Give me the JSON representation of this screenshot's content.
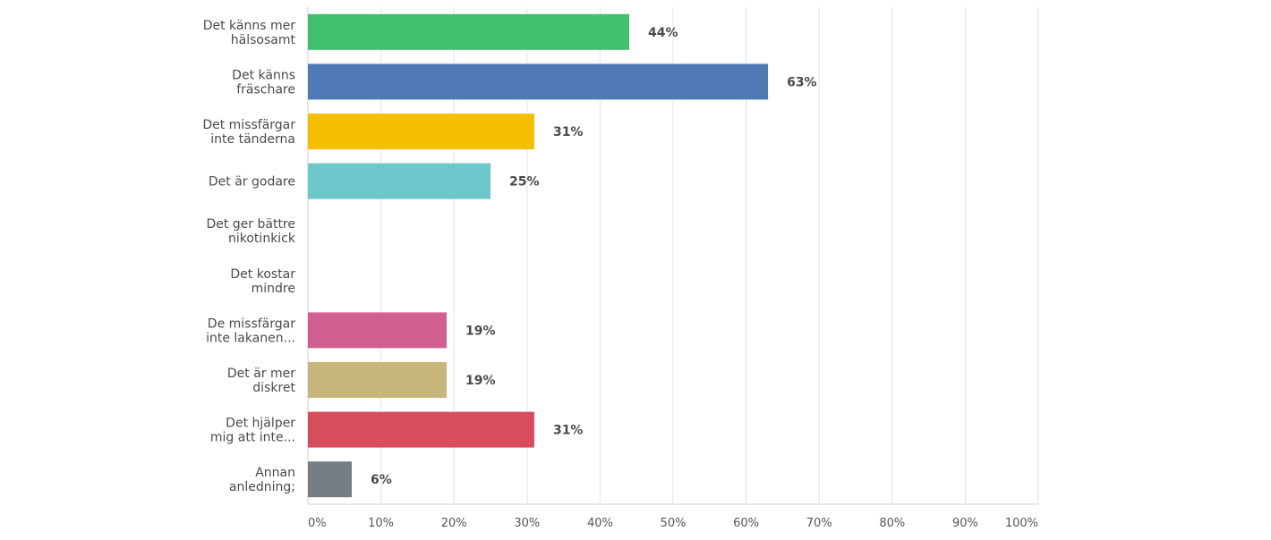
{
  "chart_data": {
    "type": "bar",
    "orientation": "horizontal",
    "categories": [
      [
        "Det känns mer",
        "hälsosamt"
      ],
      [
        "Det känns",
        "fräschare"
      ],
      [
        "Det missfärgar",
        "inte tänderna"
      ],
      [
        "Det är godare"
      ],
      [
        "Det ger bättre",
        "nikotinkick"
      ],
      [
        "Det kostar",
        "mindre"
      ],
      [
        "De missfärgar",
        "inte lakanen..."
      ],
      [
        "Det är mer",
        "diskret"
      ],
      [
        "Det hjälper",
        "mig att inte..."
      ],
      [
        "Annan",
        "anledning;"
      ]
    ],
    "values": [
      44,
      63,
      31,
      25,
      0,
      0,
      19,
      19,
      31,
      6
    ],
    "data_labels": [
      "44%",
      "63%",
      "31%",
      "25%",
      "",
      "",
      "19%",
      "19%",
      "31%",
      "6%"
    ],
    "colors": [
      "#40bf6e",
      "#4f7ab5",
      "#f5be00",
      "#6dc8cc",
      "#cccccc",
      "#cccccc",
      "#d06090",
      "#c8b77c",
      "#d74d5c",
      "#767e85"
    ],
    "xlim": [
      0,
      100
    ],
    "x_ticks": [
      0,
      10,
      20,
      30,
      40,
      50,
      60,
      70,
      80,
      90,
      100
    ],
    "x_tick_labels": [
      "0%",
      "10%",
      "20%",
      "30%",
      "40%",
      "50%",
      "60%",
      "70%",
      "80%",
      "90%",
      "100%"
    ],
    "grid": "vertical",
    "title": "",
    "xlabel": "",
    "ylabel": ""
  }
}
